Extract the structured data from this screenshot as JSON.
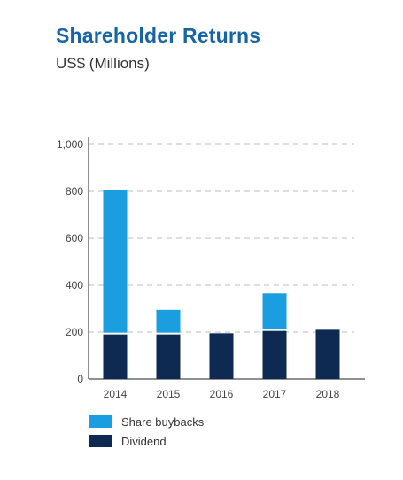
{
  "chart_data": {
    "type": "bar",
    "stacked": true,
    "title": "Shareholder Returns",
    "subtitle": "US$ (Millions)",
    "categories": [
      "2014",
      "2015",
      "2016",
      "2017",
      "2018"
    ],
    "series": [
      {
        "name": "Dividend",
        "values": [
          190,
          190,
          195,
          205,
          210
        ],
        "color": "#0e2a52"
      },
      {
        "name": "Share buybacks",
        "values": [
          615,
          105,
          0,
          160,
          0
        ],
        "color": "#1a9ee0"
      }
    ],
    "ylim": [
      0,
      1000
    ],
    "yticks": [
      "0",
      "200",
      "400",
      "600",
      "800",
      "1,000"
    ],
    "ytick_values": [
      0,
      200,
      400,
      600,
      800,
      1000
    ],
    "grid": true,
    "legend": [
      {
        "label": "Share buybacks",
        "color": "#1a9ee0"
      },
      {
        "label": "Dividend",
        "color": "#0e2a52"
      }
    ]
  }
}
